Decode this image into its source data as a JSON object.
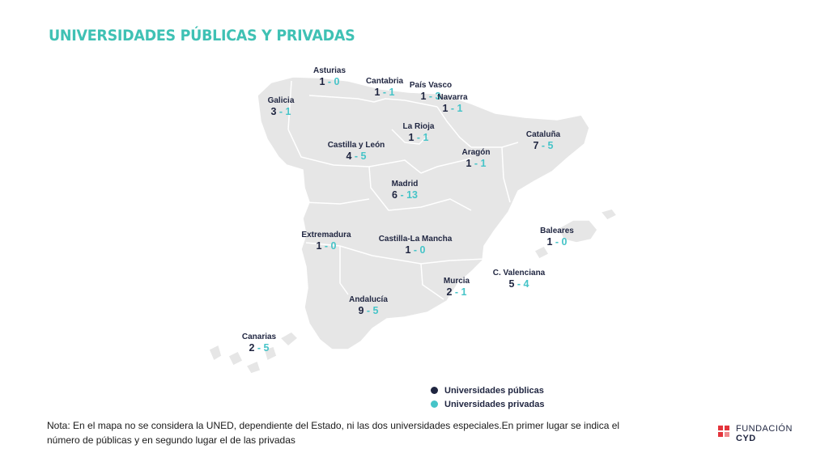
{
  "title": "UNIVERSIDADES PÚBLICAS Y PRIVADAS",
  "colors": {
    "map_fill": "#e6e6e6",
    "border": "#ffffff",
    "public": "#1f2540",
    "private": "#46c4c8",
    "title": "#3fc1b4",
    "logo": "#e3343c"
  },
  "regions": [
    {
      "name": "Asturias",
      "public": "1",
      "private": "0"
    },
    {
      "name": "Cantabria",
      "public": "1",
      "private": "1"
    },
    {
      "name": "País Vasco",
      "public": "1",
      "private": "3"
    },
    {
      "name": "Navarra",
      "public": "1",
      "private": "1"
    },
    {
      "name": "Galicia",
      "public": "3",
      "private": "1"
    },
    {
      "name": "La Rioja",
      "public": "1",
      "private": "1"
    },
    {
      "name": "Cataluña",
      "public": "7",
      "private": "5"
    },
    {
      "name": "Castilla y León",
      "public": "4",
      "private": "5"
    },
    {
      "name": "Aragón",
      "public": "1",
      "private": "1"
    },
    {
      "name": "Madrid",
      "public": "6",
      "private": "13"
    },
    {
      "name": "Baleares",
      "public": "1",
      "private": "0"
    },
    {
      "name": "Extremadura",
      "public": "1",
      "private": "0"
    },
    {
      "name": "Castilla-La Mancha",
      "public": "1",
      "private": "0"
    },
    {
      "name": "C. Valenciana",
      "public": "5",
      "private": "4"
    },
    {
      "name": "Murcia",
      "public": "2",
      "private": "1"
    },
    {
      "name": "Andalucía",
      "public": "9",
      "private": "5"
    },
    {
      "name": "Canarias",
      "public": "2",
      "private": "5"
    }
  ],
  "separator": " - ",
  "legend": {
    "public_label": "Universidades públicas",
    "private_label": "Universidades privadas"
  },
  "note": "Nota: En el mapa no se considera la UNED, dependiente del Estado, ni las dos universidades especiales.En primer lugar se indica el número de públicas y en segundo lugar el de las privadas",
  "logo": {
    "line1": "FUNDACIÓN",
    "line2": "CYD"
  }
}
